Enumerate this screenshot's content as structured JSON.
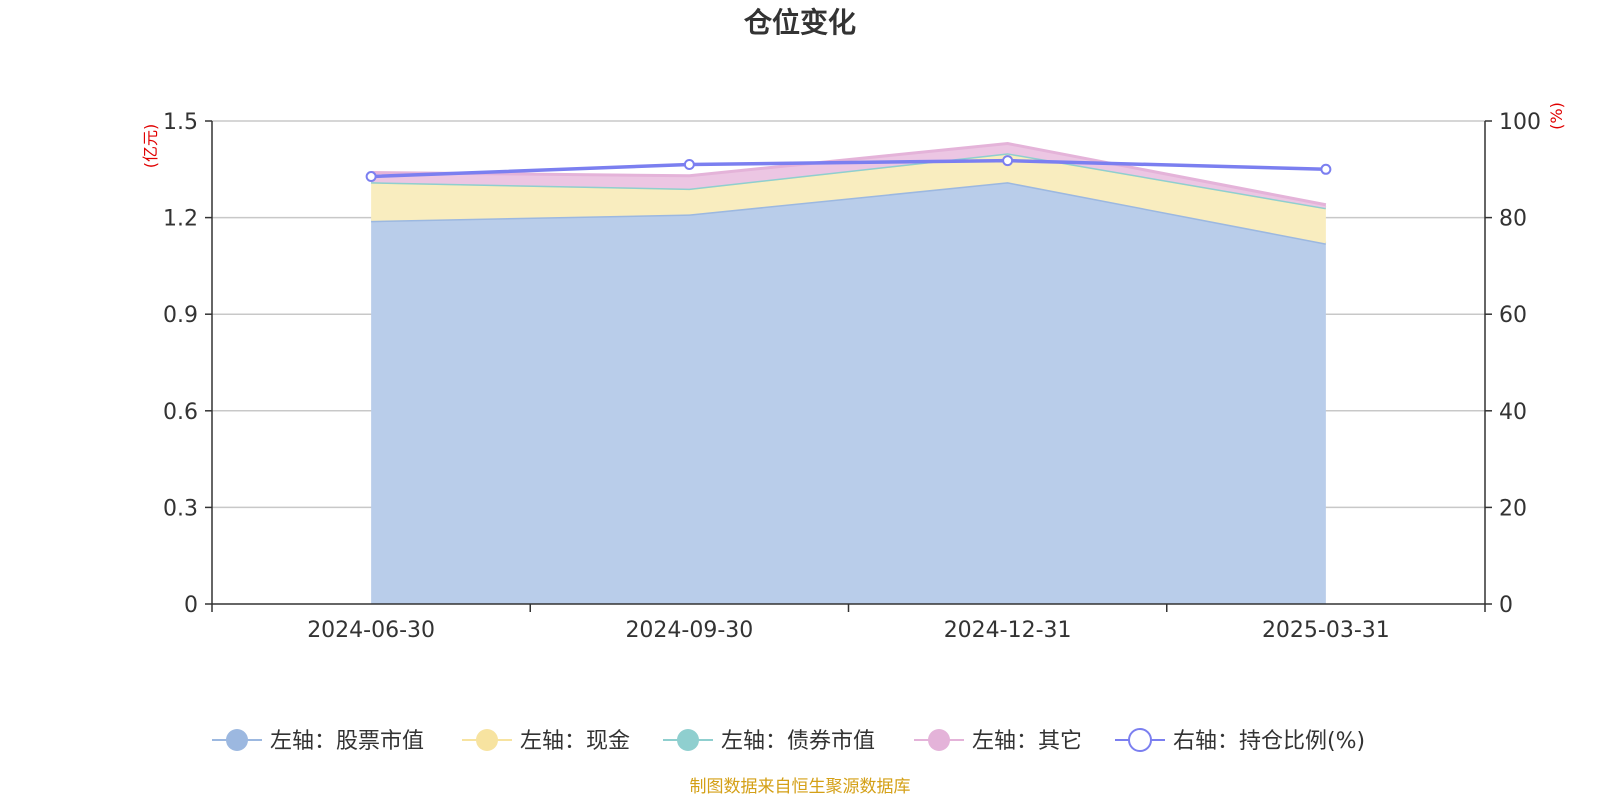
{
  "chart_data": {
    "type": "area",
    "title": "仓位变化",
    "categories": [
      "2024-06-30",
      "2024-09-30",
      "2024-12-31",
      "2025-03-31"
    ],
    "left_axis": {
      "unit": "(亿元)",
      "ylim": [
        0,
        1.5
      ],
      "ticks": [
        "0",
        "0.3",
        "0.6",
        "0.9",
        "1.2",
        "1.5"
      ]
    },
    "right_axis": {
      "unit": "(%)",
      "ylim": [
        0,
        100
      ],
      "ticks": [
        "0",
        "20",
        "40",
        "60",
        "80",
        "100"
      ]
    },
    "series": [
      {
        "name": "左轴：股票市值",
        "axis": "left",
        "stack": true,
        "color": "#9cb8e0",
        "fill": "#b9cdea",
        "values": [
          1.19,
          1.21,
          1.31,
          1.12
        ]
      },
      {
        "name": "左轴：现金",
        "axis": "left",
        "stack": true,
        "color": "#f7e3a0",
        "fill": "#f9edbf",
        "values": [
          0.12,
          0.08,
          0.09,
          0.11
        ]
      },
      {
        "name": "左轴：债券市值",
        "axis": "left",
        "stack": true,
        "color": "#8fcfcf",
        "fill": "#bfe3e3",
        "values": [
          0,
          0,
          0,
          0
        ]
      },
      {
        "name": "左轴：其它",
        "axis": "left",
        "stack": true,
        "color": "#e4b3d9",
        "fill": "#ecc6e3",
        "values": [
          0.03,
          0.04,
          0.03,
          0.01
        ]
      },
      {
        "name": "右轴：持仓比例(%)",
        "axis": "right",
        "stack": false,
        "color": "#7b7ff0",
        "values": [
          88.5,
          91.0,
          91.8,
          90.0
        ]
      }
    ],
    "grid": true,
    "legend_position": "bottom"
  },
  "source_note": "制图数据来自恒生聚源数据库"
}
